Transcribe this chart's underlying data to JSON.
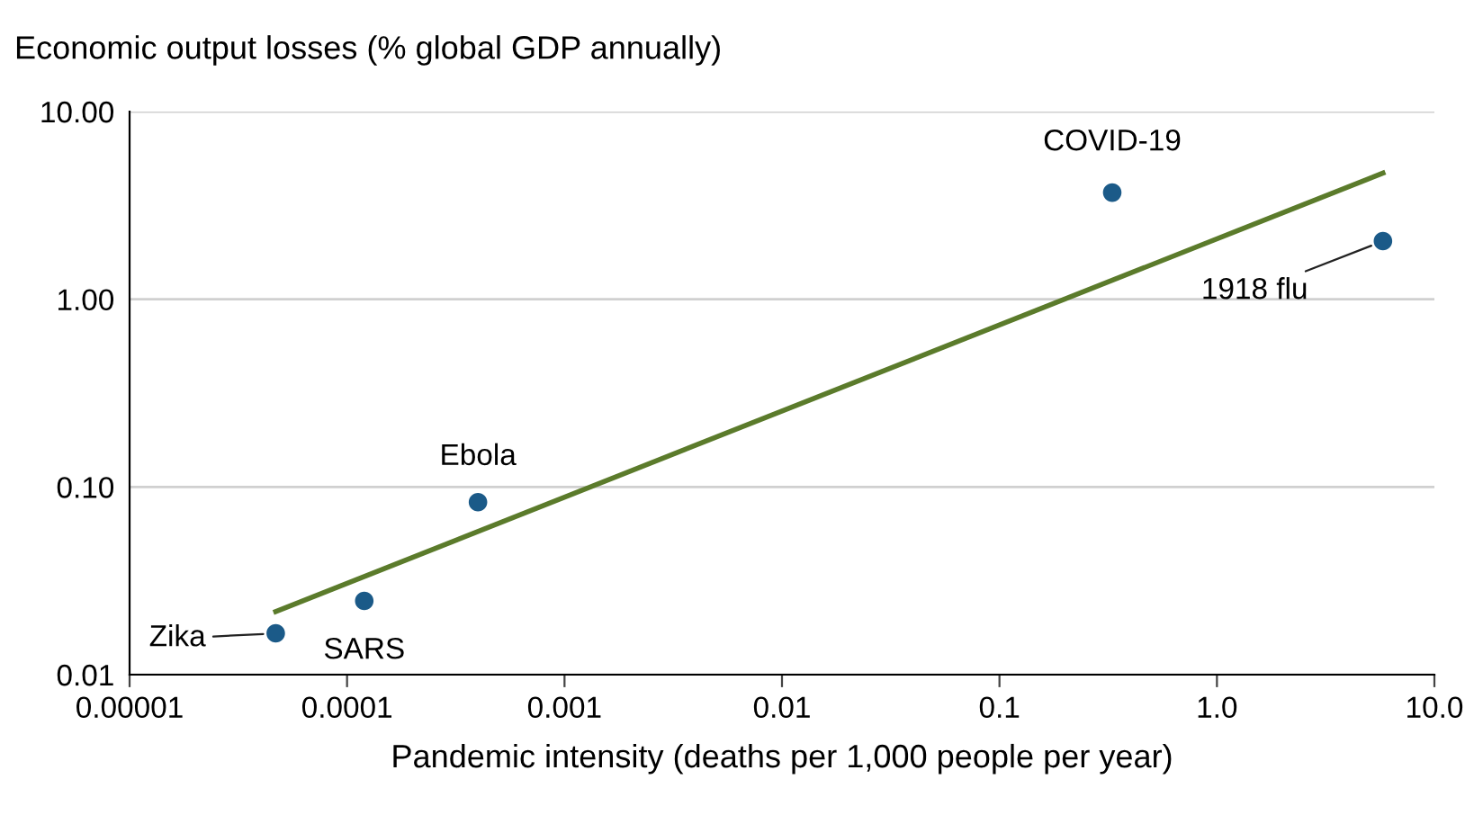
{
  "chart_data": {
    "type": "scatter",
    "ylabel": "Economic output losses (% global GDP annually)",
    "xlabel": "Pandemic intensity (deaths per 1,000 people per year)",
    "series": [
      {
        "color": "#1b5a88",
        "marker": "circle",
        "x": [
          4.7e-05,
          0.00012,
          0.0004,
          0.33,
          5.8
        ],
        "values": [
          0.0166,
          0.0247,
          0.083,
          3.7,
          2.04
        ]
      },
      {
        "type": "line",
        "color": "#5b7b2b",
        "x": [
          4.7e-05,
          5.8
        ],
        "values": [
          0.0217,
          4.7
        ]
      }
    ],
    "log": "xy",
    "grid": "y",
    "legend": false,
    "xlim": [
      1e-05,
      10
    ],
    "xticks": [
      {
        "value": 1e-05,
        "label": "0.00001"
      },
      {
        "value": 0.0001,
        "label": "0.0001"
      },
      {
        "value": 0.001,
        "label": "0.001"
      },
      {
        "value": 0.01,
        "label": "0.01"
      },
      {
        "value": 0.1,
        "label": "0.1"
      },
      {
        "value": 1,
        "label": "1.0"
      },
      {
        "value": 10,
        "label": "10.0"
      }
    ],
    "ylim": [
      0.01,
      10
    ],
    "yticks": [
      {
        "value": 0.01,
        "label": "0.01"
      },
      {
        "value": 0.1,
        "label": "0.10"
      },
      {
        "value": 1,
        "label": "1.00"
      },
      {
        "value": 10,
        "label": "10.00"
      }
    ],
    "annotations": [
      {
        "text": "Zika",
        "x": 4.7e-05,
        "y": 0.0166
      },
      {
        "text": "SARS",
        "x": 0.00012,
        "y": 0.0247
      },
      {
        "text": "Ebola",
        "x": 0.0004,
        "y": 0.083
      },
      {
        "text": "COVID-19",
        "x": 0.33,
        "y": 3.7
      },
      {
        "text": "1918 flu",
        "x": 5.8,
        "y": 2.04
      }
    ]
  }
}
